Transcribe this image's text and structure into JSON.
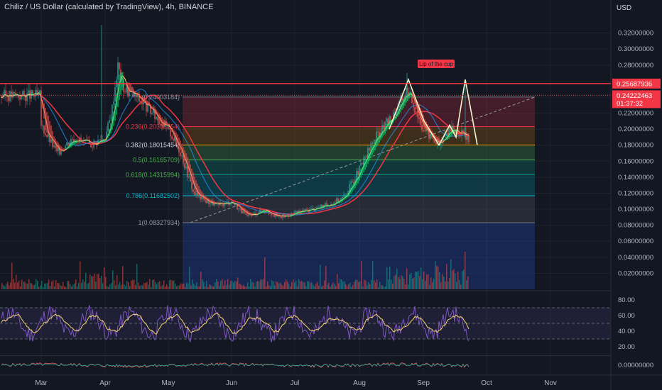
{
  "header": {
    "title": "Chiliz / US Dollar (calculated by TradingView), 4h, BINANCE",
    "currency": "USD"
  },
  "colors": {
    "background": "#131722",
    "grid": "#1e222d",
    "axis_text": "#b2b5be",
    "resistance": "#f23645",
    "price_tag": "#f23645",
    "annotation_bg": "#f23645",
    "fib_line": "#d1d4dc"
  },
  "annotation": {
    "text": "Lip of the cup"
  },
  "price_tags": {
    "resistance_value": "0.25687936",
    "last_value": "0.24222463",
    "countdown": "01:37:32"
  },
  "chart_data": [
    {
      "type": "line",
      "subtype": "candlestick-price",
      "title": "Chiliz / US Dollar (calculated by TradingView), 4h, BINANCE",
      "ylabel": "USD",
      "x": [
        "Mar",
        "Apr",
        "May",
        "Jun",
        "Jul",
        "Aug",
        "Sep",
        "Oct",
        "Nov"
      ],
      "y_ticks": [
        "0.32000000",
        "0.30000000",
        "0.28000000",
        "0.26000000",
        "0.24000000",
        "0.22000000",
        "0.20000000",
        "0.18000000",
        "0.16000000",
        "0.14000000",
        "0.12000000",
        "0.10000000",
        "0.08000000",
        "0.06000000",
        "0.04000000",
        "0.02000000"
      ],
      "ylim": [
        0,
        0.34
      ],
      "series": [
        {
          "name": "",
          "x_month": [
            0.0,
            0.25,
            0.5,
            0.75,
            1.0,
            1.1,
            1.2,
            1.3,
            1.5,
            1.75,
            2.0,
            2.2,
            2.4,
            2.6,
            2.8,
            3.0,
            3.25,
            3.5,
            3.75,
            4.0,
            4.25,
            4.5,
            4.75,
            5.0,
            5.25,
            5.5,
            5.75,
            6.0,
            6.25,
            6.4,
            6.6,
            6.8,
            6.95,
            7.05,
            7.15,
            7.3,
            7.55,
            7.7,
            7.8
          ],
          "close": [
            0.205,
            0.17,
            0.19,
            0.18,
            0.19,
            0.22,
            0.28,
            0.25,
            0.24,
            0.22,
            0.2,
            0.17,
            0.12,
            0.11,
            0.105,
            0.11,
            0.09,
            0.1,
            0.09,
            0.095,
            0.1,
            0.105,
            0.115,
            0.15,
            0.19,
            0.215,
            0.25,
            0.2,
            0.18,
            0.2,
            0.195,
            0.18,
            0.22,
            0.2,
            0.21,
            0.24,
            0.25,
            0.21,
            0.242
          ]
        }
      ],
      "fibonacci": [
        {
          "ratio": "0",
          "value": "0.24003184",
          "label": "(0.24003184)"
        },
        {
          "ratio": "0.236",
          "value": "0.20305254",
          "label": "0.236(0.20305254)"
        },
        {
          "ratio": "0.382",
          "value": "0.18015454",
          "label": "0.382(0.18015454)"
        },
        {
          "ratio": "0.5",
          "value": "0.16165709",
          "label": "0.5(0.16165709)"
        },
        {
          "ratio": "0.618",
          "value": "0.14315994",
          "label": "0.618(0.14315994)"
        },
        {
          "ratio": "0.786",
          "value": "0.11682502",
          "label": "0.786(0.11682502)"
        },
        {
          "ratio": "1",
          "value": "0.08327934",
          "label": "1(0.08327934)"
        }
      ],
      "resistance": 0.25687936,
      "last_price": 0.24222463
    },
    {
      "type": "line",
      "subtype": "rsi",
      "y_ticks": [
        "80.00",
        "60.00",
        "40.00",
        "20.00"
      ],
      "ylim": [
        10,
        90
      ],
      "bands": [
        70,
        50,
        30
      ]
    },
    {
      "type": "line",
      "subtype": "oscillator",
      "y_ticks": [
        "0.00000000"
      ],
      "ylim": [
        -0.01,
        0.01
      ]
    }
  ]
}
